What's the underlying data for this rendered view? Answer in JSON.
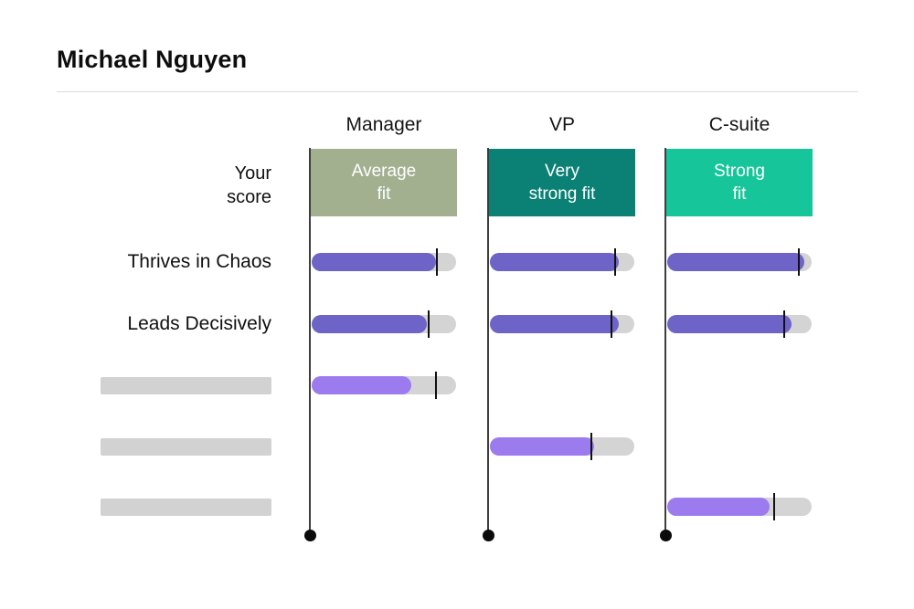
{
  "page": {
    "title": "Michael Nguyen"
  },
  "labels": {
    "your_score_lines": [
      "Your",
      "score"
    ]
  },
  "chart_data": {
    "type": "bar",
    "orientation": "horizontal",
    "title": "Michael Nguyen",
    "value_range": [
      0,
      100
    ],
    "legend_position": "none",
    "grid": false,
    "columns": [
      {
        "label": "Manager",
        "fit": "Average fit",
        "fit_lines": [
          "Average",
          "fit"
        ],
        "fit_color": "#A2B090"
      },
      {
        "label": "VP",
        "fit": "Very strong fit",
        "fit_lines": [
          "Very",
          "strong fit"
        ],
        "fit_color": "#0A8174"
      },
      {
        "label": "C-suite",
        "fit": "Strong fit",
        "fit_lines": [
          "Strong",
          "fit"
        ],
        "fit_color": "#16C69A"
      }
    ],
    "rows": [
      {
        "label": "Thrives in Chaos",
        "redacted": false,
        "bars": [
          {
            "column": "Manager",
            "value": 86,
            "benchmark": 87
          },
          {
            "column": "VP",
            "value": 89,
            "benchmark": 87
          },
          {
            "column": "C-suite",
            "value": 95,
            "benchmark": 91
          }
        ]
      },
      {
        "label": "Leads Decisively",
        "redacted": false,
        "bars": [
          {
            "column": "Manager",
            "value": 80,
            "benchmark": 81
          },
          {
            "column": "VP",
            "value": 89,
            "benchmark": 84
          },
          {
            "column": "C-suite",
            "value": 86,
            "benchmark": 81
          }
        ]
      },
      {
        "label": "",
        "redacted": true,
        "bars": [
          {
            "column": "Manager",
            "value": 69,
            "benchmark": 86
          }
        ]
      },
      {
        "label": "",
        "redacted": true,
        "bars": [
          {
            "column": "VP",
            "value": 72,
            "benchmark": 70
          }
        ]
      },
      {
        "label": "",
        "redacted": true,
        "bars": [
          {
            "column": "C-suite",
            "value": 71,
            "benchmark": 74
          }
        ]
      }
    ],
    "colors": {
      "bar_strong": "#6E64C8",
      "bar_light": "#9C7BEE",
      "track": "#D4D4D4",
      "placeholder": "#D2D2D2",
      "benchmark_tick": "#111111",
      "axis": "#3D3D3D",
      "dot": "#0B0B0B"
    }
  }
}
